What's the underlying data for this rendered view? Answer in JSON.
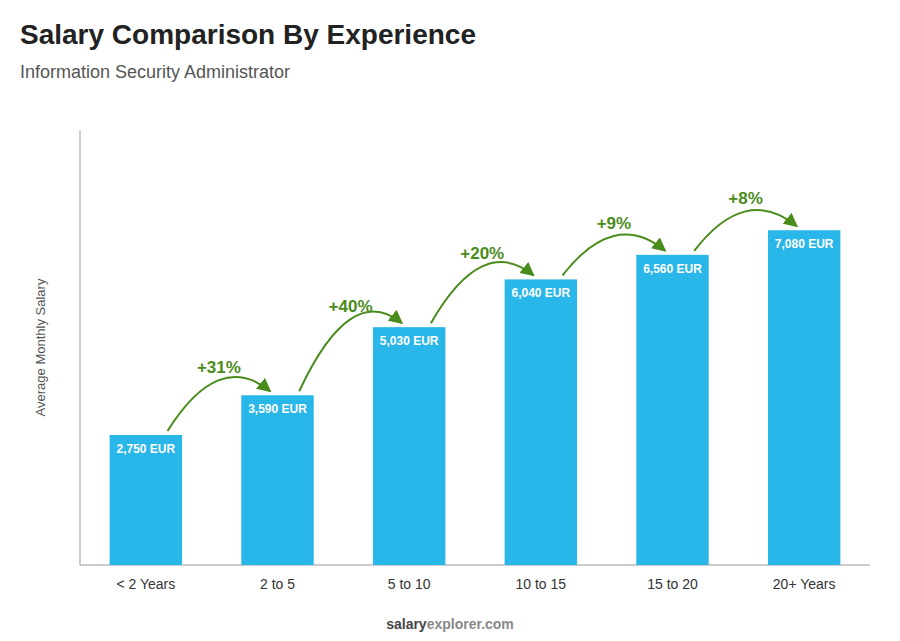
{
  "chart_data": {
    "type": "bar",
    "title": "Salary Comparison By Experience",
    "subtitle": "Information Security Administrator",
    "ylabel": "Average Monthly Salary",
    "categories": [
      "< 2 Years",
      "2 to 5",
      "5 to 10",
      "10 to 15",
      "15 to 20",
      "20+ Years"
    ],
    "values": [
      2750,
      3590,
      5030,
      6040,
      6560,
      7080
    ],
    "value_labels": [
      "2,750 EUR",
      "3,590 EUR",
      "5,030 EUR",
      "6,040 EUR",
      "6,560 EUR",
      "7,080 EUR"
    ],
    "data_labels": true,
    "color": "#29b6e8",
    "ylim": [
      0,
      9200
    ],
    "tick_labels": "x",
    "grid": false,
    "annotations": [
      "+31%",
      "+40%",
      "+20%",
      "+9%",
      "+8%"
    ],
    "watermark": [
      "salary",
      "explorer.com"
    ]
  }
}
